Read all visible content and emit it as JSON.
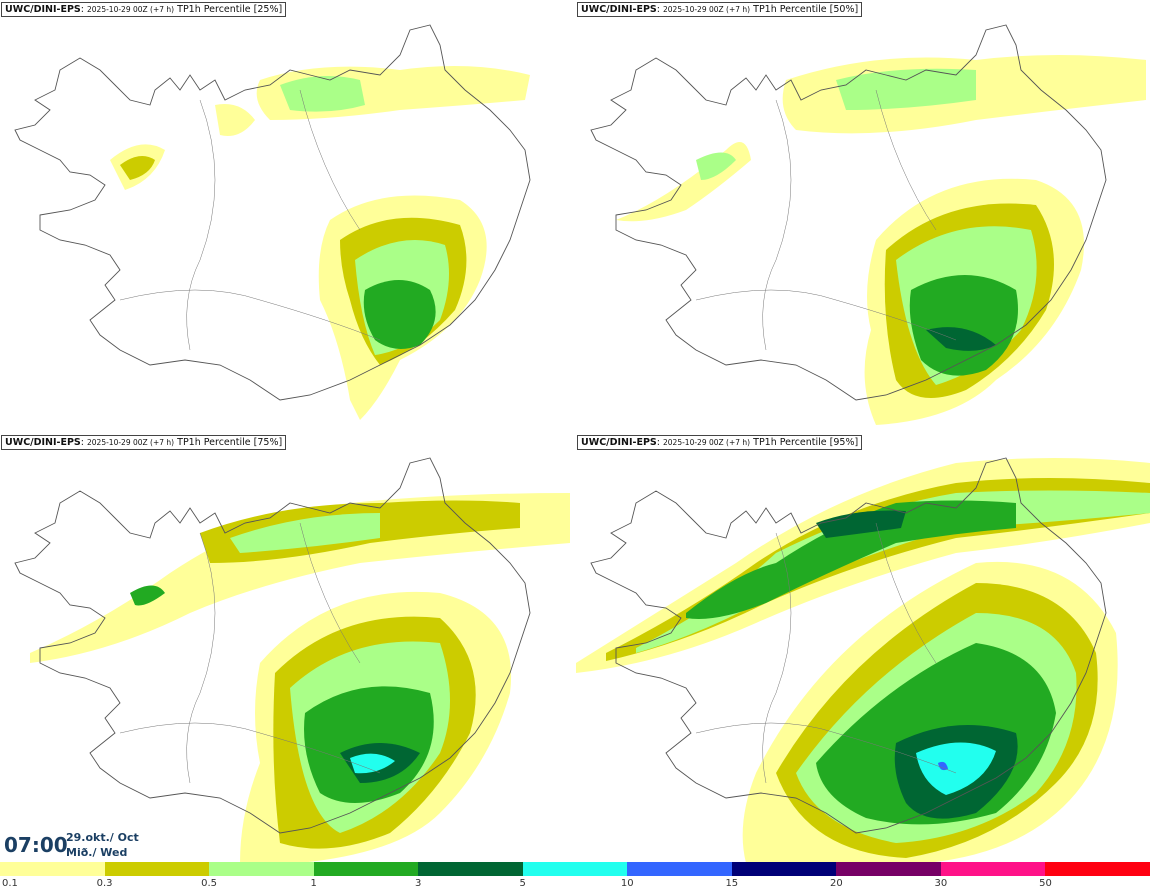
{
  "panels": [
    {
      "model": "UWC/DINI-EPS",
      "info": "2025-10-29 00Z (+7 h)",
      "product": "TP1h Percentile [25%]"
    },
    {
      "model": "UWC/DINI-EPS",
      "info": "2025-10-29 00Z (+7 h)",
      "product": "TP1h Percentile [50%]"
    },
    {
      "model": "UWC/DINI-EPS",
      "info": "2025-10-29 00Z (+7 h)",
      "product": "TP1h Percentile [75%]"
    },
    {
      "model": "UWC/DINI-EPS",
      "info": "2025-10-29 00Z (+7 h)",
      "product": "TP1h Percentile [95%]"
    }
  ],
  "valid": {
    "time": "07:00",
    "date_line": "29.okt./ Oct",
    "day_line": "Mið./ Wed"
  },
  "legend": {
    "labels": [
      "0.1",
      "0.3",
      "0.5",
      "1",
      "3",
      "5",
      "10",
      "15",
      "20",
      "30",
      "50"
    ],
    "colors": [
      "#ffff99",
      "#cccc00",
      "#aaff88",
      "#22aa22",
      "#006633",
      "#22ffee",
      "#3366ff",
      "#000077",
      "#770066",
      "#ff1188",
      "#ff0011"
    ]
  },
  "colors": {
    "outline": "#555555",
    "level_01": "#ffff99",
    "level_03": "#cccc00",
    "level_05": "#aaff88",
    "level_1": "#22aa22",
    "level_3": "#006633",
    "level_5": "#22ffee"
  }
}
